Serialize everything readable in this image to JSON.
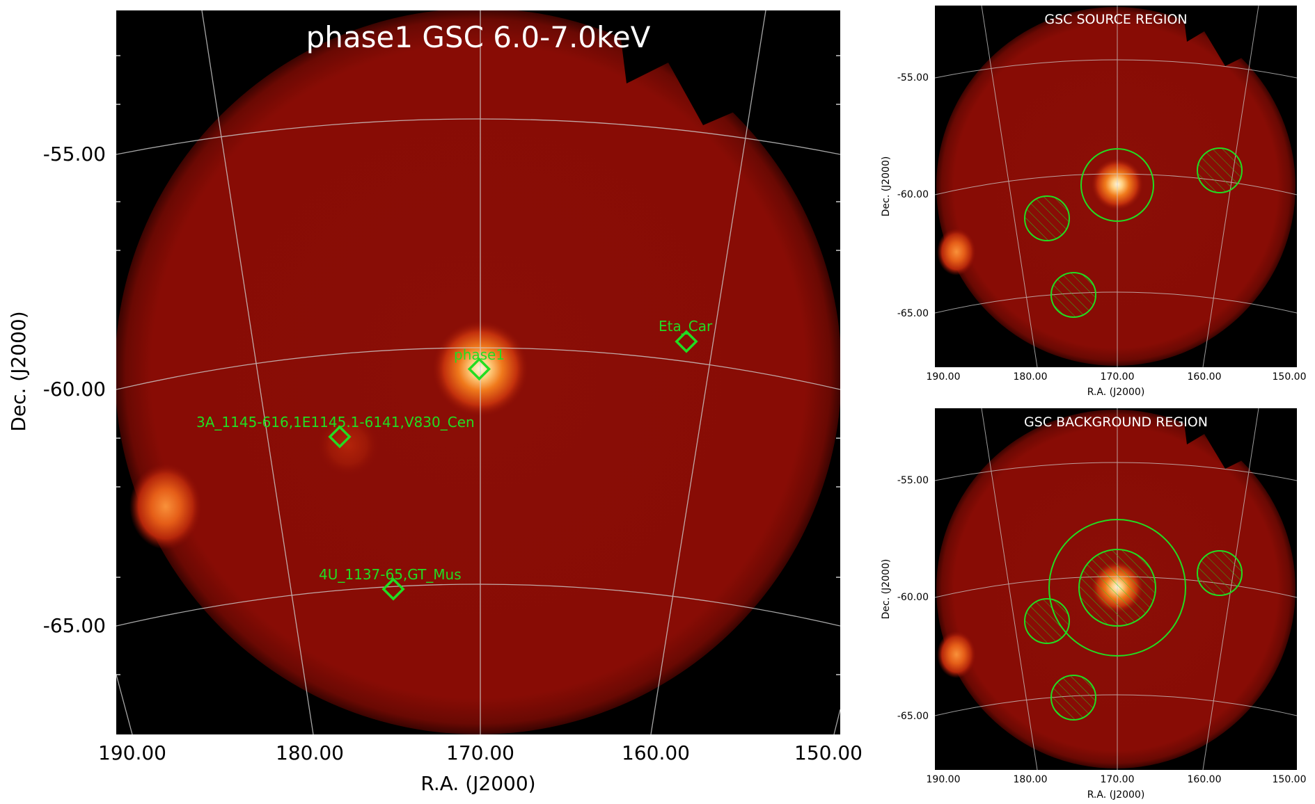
{
  "main_panel": {
    "title": "phase1 GSC 6.0-7.0keV",
    "xlabel": "R.A. (J2000)",
    "ylabel": "Dec. (J2000)",
    "x_ticks": [
      "190.00",
      "180.00",
      "170.00",
      "160.00",
      "150.00"
    ],
    "y_ticks": [
      "-55.00",
      "-60.00",
      "-65.00"
    ],
    "sources": [
      {
        "label": "phase1"
      },
      {
        "label": "Eta_Car"
      },
      {
        "label": "3A_1145-616,1E1145.1-6141,V830_Cen"
      },
      {
        "label": "4U_1137-65,GT_Mus"
      }
    ]
  },
  "source_panel": {
    "title": "GSC SOURCE REGION",
    "xlabel": "R.A. (J2000)",
    "ylabel": "Dec. (J2000)",
    "x_ticks": [
      "190.00",
      "180.00",
      "170.00",
      "160.00",
      "150.00"
    ],
    "y_ticks": [
      "-55.00",
      "-60.00",
      "-65.00"
    ]
  },
  "background_panel": {
    "title": "GSC BACKGROUND REGION",
    "xlabel": "R.A. (J2000)",
    "ylabel": "Dec. (J2000)",
    "x_ticks": [
      "190.00",
      "180.00",
      "170.00",
      "160.00",
      "150.00"
    ],
    "y_ticks": [
      "-55.00",
      "-60.00",
      "-65.00"
    ]
  },
  "colors": {
    "background": "#000000",
    "field": "#8b0d05",
    "region": "#22dd22",
    "grid": "#cfcfcf"
  }
}
